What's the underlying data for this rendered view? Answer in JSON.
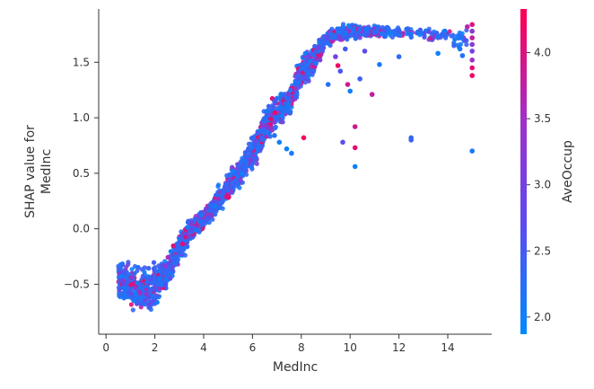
{
  "chart_data": {
    "type": "scatter",
    "title": "",
    "xlabel": "MedInc",
    "ylabel_lines": [
      "SHAP value for",
      "MedInc"
    ],
    "xlim": [
      -0.3,
      15.8
    ],
    "ylim": [
      -0.95,
      1.98
    ],
    "xticks": [
      0,
      2,
      4,
      6,
      8,
      10,
      12,
      14
    ],
    "yticks": [
      -0.5,
      0.0,
      0.5,
      1.0,
      1.5
    ],
    "ytick_labels": [
      "−0.5",
      "0.0",
      "0.5",
      "1.0",
      "1.5"
    ],
    "grid": false,
    "colorbar": {
      "label": "AveOccup",
      "range": [
        1.87,
        4.33
      ],
      "ticks": [
        2.0,
        2.5,
        3.0,
        3.5,
        4.0
      ],
      "tick_labels": [
        "2.0",
        "2.5",
        "3.0",
        "3.5",
        "4.0"
      ],
      "colors": [
        "#008afb",
        "#5a4cf0",
        "#a030c8",
        "#ff0052"
      ]
    },
    "trend": [
      {
        "x": 0.5,
        "y": -0.48,
        "spread": 0.16
      },
      {
        "x": 1.0,
        "y": -0.52,
        "spread": 0.18
      },
      {
        "x": 1.5,
        "y": -0.56,
        "spread": 0.2
      },
      {
        "x": 2.0,
        "y": -0.52,
        "spread": 0.18
      },
      {
        "x": 2.5,
        "y": -0.4,
        "spread": 0.12
      },
      {
        "x": 3.0,
        "y": -0.18,
        "spread": 0.12
      },
      {
        "x": 3.5,
        "y": 0.0,
        "spread": 0.1
      },
      {
        "x": 4.0,
        "y": 0.1,
        "spread": 0.08
      },
      {
        "x": 4.5,
        "y": 0.22,
        "spread": 0.1
      },
      {
        "x": 5.0,
        "y": 0.38,
        "spread": 0.12
      },
      {
        "x": 5.5,
        "y": 0.52,
        "spread": 0.12
      },
      {
        "x": 6.0,
        "y": 0.68,
        "spread": 0.14
      },
      {
        "x": 6.5,
        "y": 0.9,
        "spread": 0.14
      },
      {
        "x": 7.0,
        "y": 1.06,
        "spread": 0.14
      },
      {
        "x": 7.5,
        "y": 1.15,
        "spread": 0.12
      },
      {
        "x": 8.0,
        "y": 1.42,
        "spread": 0.14
      },
      {
        "x": 8.5,
        "y": 1.52,
        "spread": 0.12
      },
      {
        "x": 9.0,
        "y": 1.7,
        "spread": 0.08
      },
      {
        "x": 9.5,
        "y": 1.76,
        "spread": 0.06
      },
      {
        "x": 10.0,
        "y": 1.78,
        "spread": 0.06
      },
      {
        "x": 11.0,
        "y": 1.78,
        "spread": 0.05
      },
      {
        "x": 12.0,
        "y": 1.77,
        "spread": 0.05
      },
      {
        "x": 13.0,
        "y": 1.76,
        "spread": 0.05
      },
      {
        "x": 14.0,
        "y": 1.72,
        "spread": 0.06
      },
      {
        "x": 15.0,
        "y": 1.68,
        "spread": 0.1
      }
    ],
    "points": [
      {
        "x": 9.7,
        "y": 0.78,
        "c": 2.7
      },
      {
        "x": 10.2,
        "y": 0.92,
        "c": 3.9
      },
      {
        "x": 10.2,
        "y": 0.73,
        "c": 4.1
      },
      {
        "x": 10.2,
        "y": 0.56,
        "c": 2.0
      },
      {
        "x": 12.5,
        "y": 0.82,
        "c": 2.3
      },
      {
        "x": 12.5,
        "y": 0.8,
        "c": 2.4
      },
      {
        "x": 15.0,
        "y": 0.7,
        "c": 2.1
      },
      {
        "x": 10.0,
        "y": 1.24,
        "c": 2.0
      },
      {
        "x": 10.9,
        "y": 1.21,
        "c": 3.8
      },
      {
        "x": 9.9,
        "y": 1.3,
        "c": 3.9
      },
      {
        "x": 9.1,
        "y": 1.3,
        "c": 2.2
      },
      {
        "x": 9.6,
        "y": 1.42,
        "c": 2.6
      },
      {
        "x": 10.4,
        "y": 1.35,
        "c": 2.4
      },
      {
        "x": 11.2,
        "y": 1.48,
        "c": 2.1
      },
      {
        "x": 12.0,
        "y": 1.55,
        "c": 2.3
      },
      {
        "x": 13.6,
        "y": 1.58,
        "c": 2.0
      },
      {
        "x": 8.1,
        "y": 0.82,
        "c": 4.2
      },
      {
        "x": 7.4,
        "y": 0.72,
        "c": 2.0
      },
      {
        "x": 7.6,
        "y": 0.68,
        "c": 2.1
      },
      {
        "x": 7.1,
        "y": 0.78,
        "c": 2.0
      },
      {
        "x": 6.9,
        "y": 0.84,
        "c": 2.2
      },
      {
        "x": 14.5,
        "y": 1.62,
        "c": 2.1
      },
      {
        "x": 15.0,
        "y": 1.38,
        "c": 4.2
      },
      {
        "x": 15.0,
        "y": 1.45,
        "c": 4.1
      },
      {
        "x": 15.0,
        "y": 1.52,
        "c": 3.5
      },
      {
        "x": 15.0,
        "y": 1.6,
        "c": 3.0
      },
      {
        "x": 15.0,
        "y": 1.66,
        "c": 3.2
      },
      {
        "x": 15.0,
        "y": 1.72,
        "c": 3.8
      },
      {
        "x": 15.0,
        "y": 1.78,
        "c": 3.3
      },
      {
        "x": 15.0,
        "y": 1.84,
        "c": 4.0
      },
      {
        "x": 14.8,
        "y": 1.82,
        "c": 3.7
      },
      {
        "x": 14.7,
        "y": 1.7,
        "c": 2.6
      },
      {
        "x": 14.6,
        "y": 1.56,
        "c": 2.2
      },
      {
        "x": 9.4,
        "y": 1.55,
        "c": 3.0
      },
      {
        "x": 9.5,
        "y": 1.47,
        "c": 4.2
      },
      {
        "x": 9.8,
        "y": 1.62,
        "c": 2.5
      },
      {
        "x": 10.6,
        "y": 1.6,
        "c": 2.7
      }
    ]
  }
}
